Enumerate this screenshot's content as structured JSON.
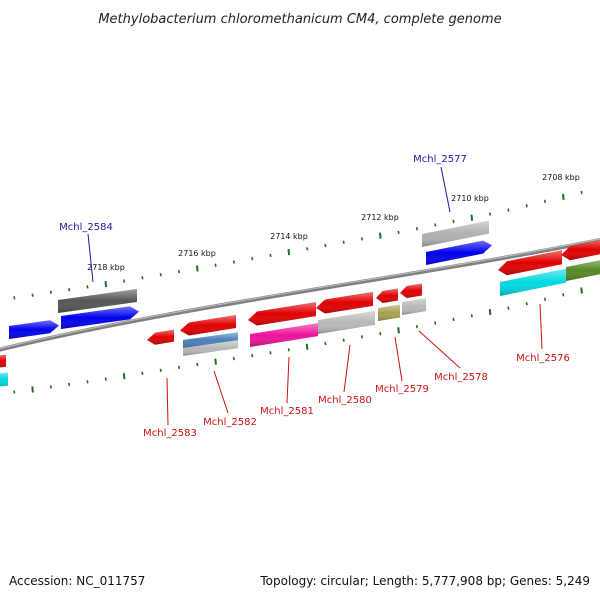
{
  "title": "Methylobacterium chloromethanicum CM4, complete genome",
  "footer": {
    "accession": "Accession: NC_011757",
    "summary": "Topology: circular; Length: 5,777,908 bp; Genes: 5,249"
  },
  "colors": {
    "backbone": "#808080",
    "tick": "#207020",
    "forward_label": "#1a1aa0",
    "reverse_label": "#cc1111"
  },
  "scale_labels": [
    "2718 kbp",
    "2716 kbp",
    "2714 kbp",
    "2712 kbp",
    "2710 kbp",
    "2708 kbp"
  ],
  "gene_labels": [
    {
      "name": "Mchl_2584",
      "strand": "forward"
    },
    {
      "name": "Mchl_2577",
      "strand": "forward"
    },
    {
      "name": "Mchl_2583",
      "strand": "reverse"
    },
    {
      "name": "Mchl_2582",
      "strand": "reverse"
    },
    {
      "name": "Mchl_2581",
      "strand": "reverse"
    },
    {
      "name": "Mchl_2580",
      "strand": "reverse"
    },
    {
      "name": "Mchl_2579",
      "strand": "reverse"
    },
    {
      "name": "Mchl_2578",
      "strand": "reverse"
    },
    {
      "name": "Mchl_2576",
      "strand": "reverse"
    }
  ],
  "features": [
    {
      "id": "f-blue-left-1",
      "color": "#0000ee"
    },
    {
      "id": "f-blue-left-2",
      "color": "#0000ee"
    },
    {
      "id": "f-dgray-top",
      "color": "#555555"
    },
    {
      "id": "f-blue-right",
      "color": "#0000ee"
    },
    {
      "id": "f-lgray-right-top",
      "color": "#b0b0b0"
    },
    {
      "id": "f-red-left-edge",
      "color": "#e00000"
    },
    {
      "id": "f-cyan-left-edge",
      "color": "#00d8e0"
    },
    {
      "id": "f-red-2583",
      "color": "#e00000"
    },
    {
      "id": "f-red-2582",
      "color": "#e00000"
    },
    {
      "id": "f-steel-2582",
      "color": "#4a7fb8"
    },
    {
      "id": "f-lgray-2582",
      "color": "#b8b8b8"
    },
    {
      "id": "f-red-2581",
      "color": "#e00000"
    },
    {
      "id": "f-magenta-2581",
      "color": "#ee1199"
    },
    {
      "id": "f-red-2580",
      "color": "#e00000"
    },
    {
      "id": "f-lgray-2580",
      "color": "#b8b8b8"
    },
    {
      "id": "f-red-2579",
      "color": "#e00000"
    },
    {
      "id": "f-olive-2579",
      "color": "#a8a050"
    },
    {
      "id": "f-red-2578",
      "color": "#e00000"
    },
    {
      "id": "f-lgray-2578",
      "color": "#b8b8b8"
    },
    {
      "id": "f-red-2576-a",
      "color": "#e00000"
    },
    {
      "id": "f-red-2576-b",
      "color": "#e00000"
    },
    {
      "id": "f-cyan-2576",
      "color": "#00d8e0"
    },
    {
      "id": "f-green-right",
      "color": "#558822"
    }
  ]
}
